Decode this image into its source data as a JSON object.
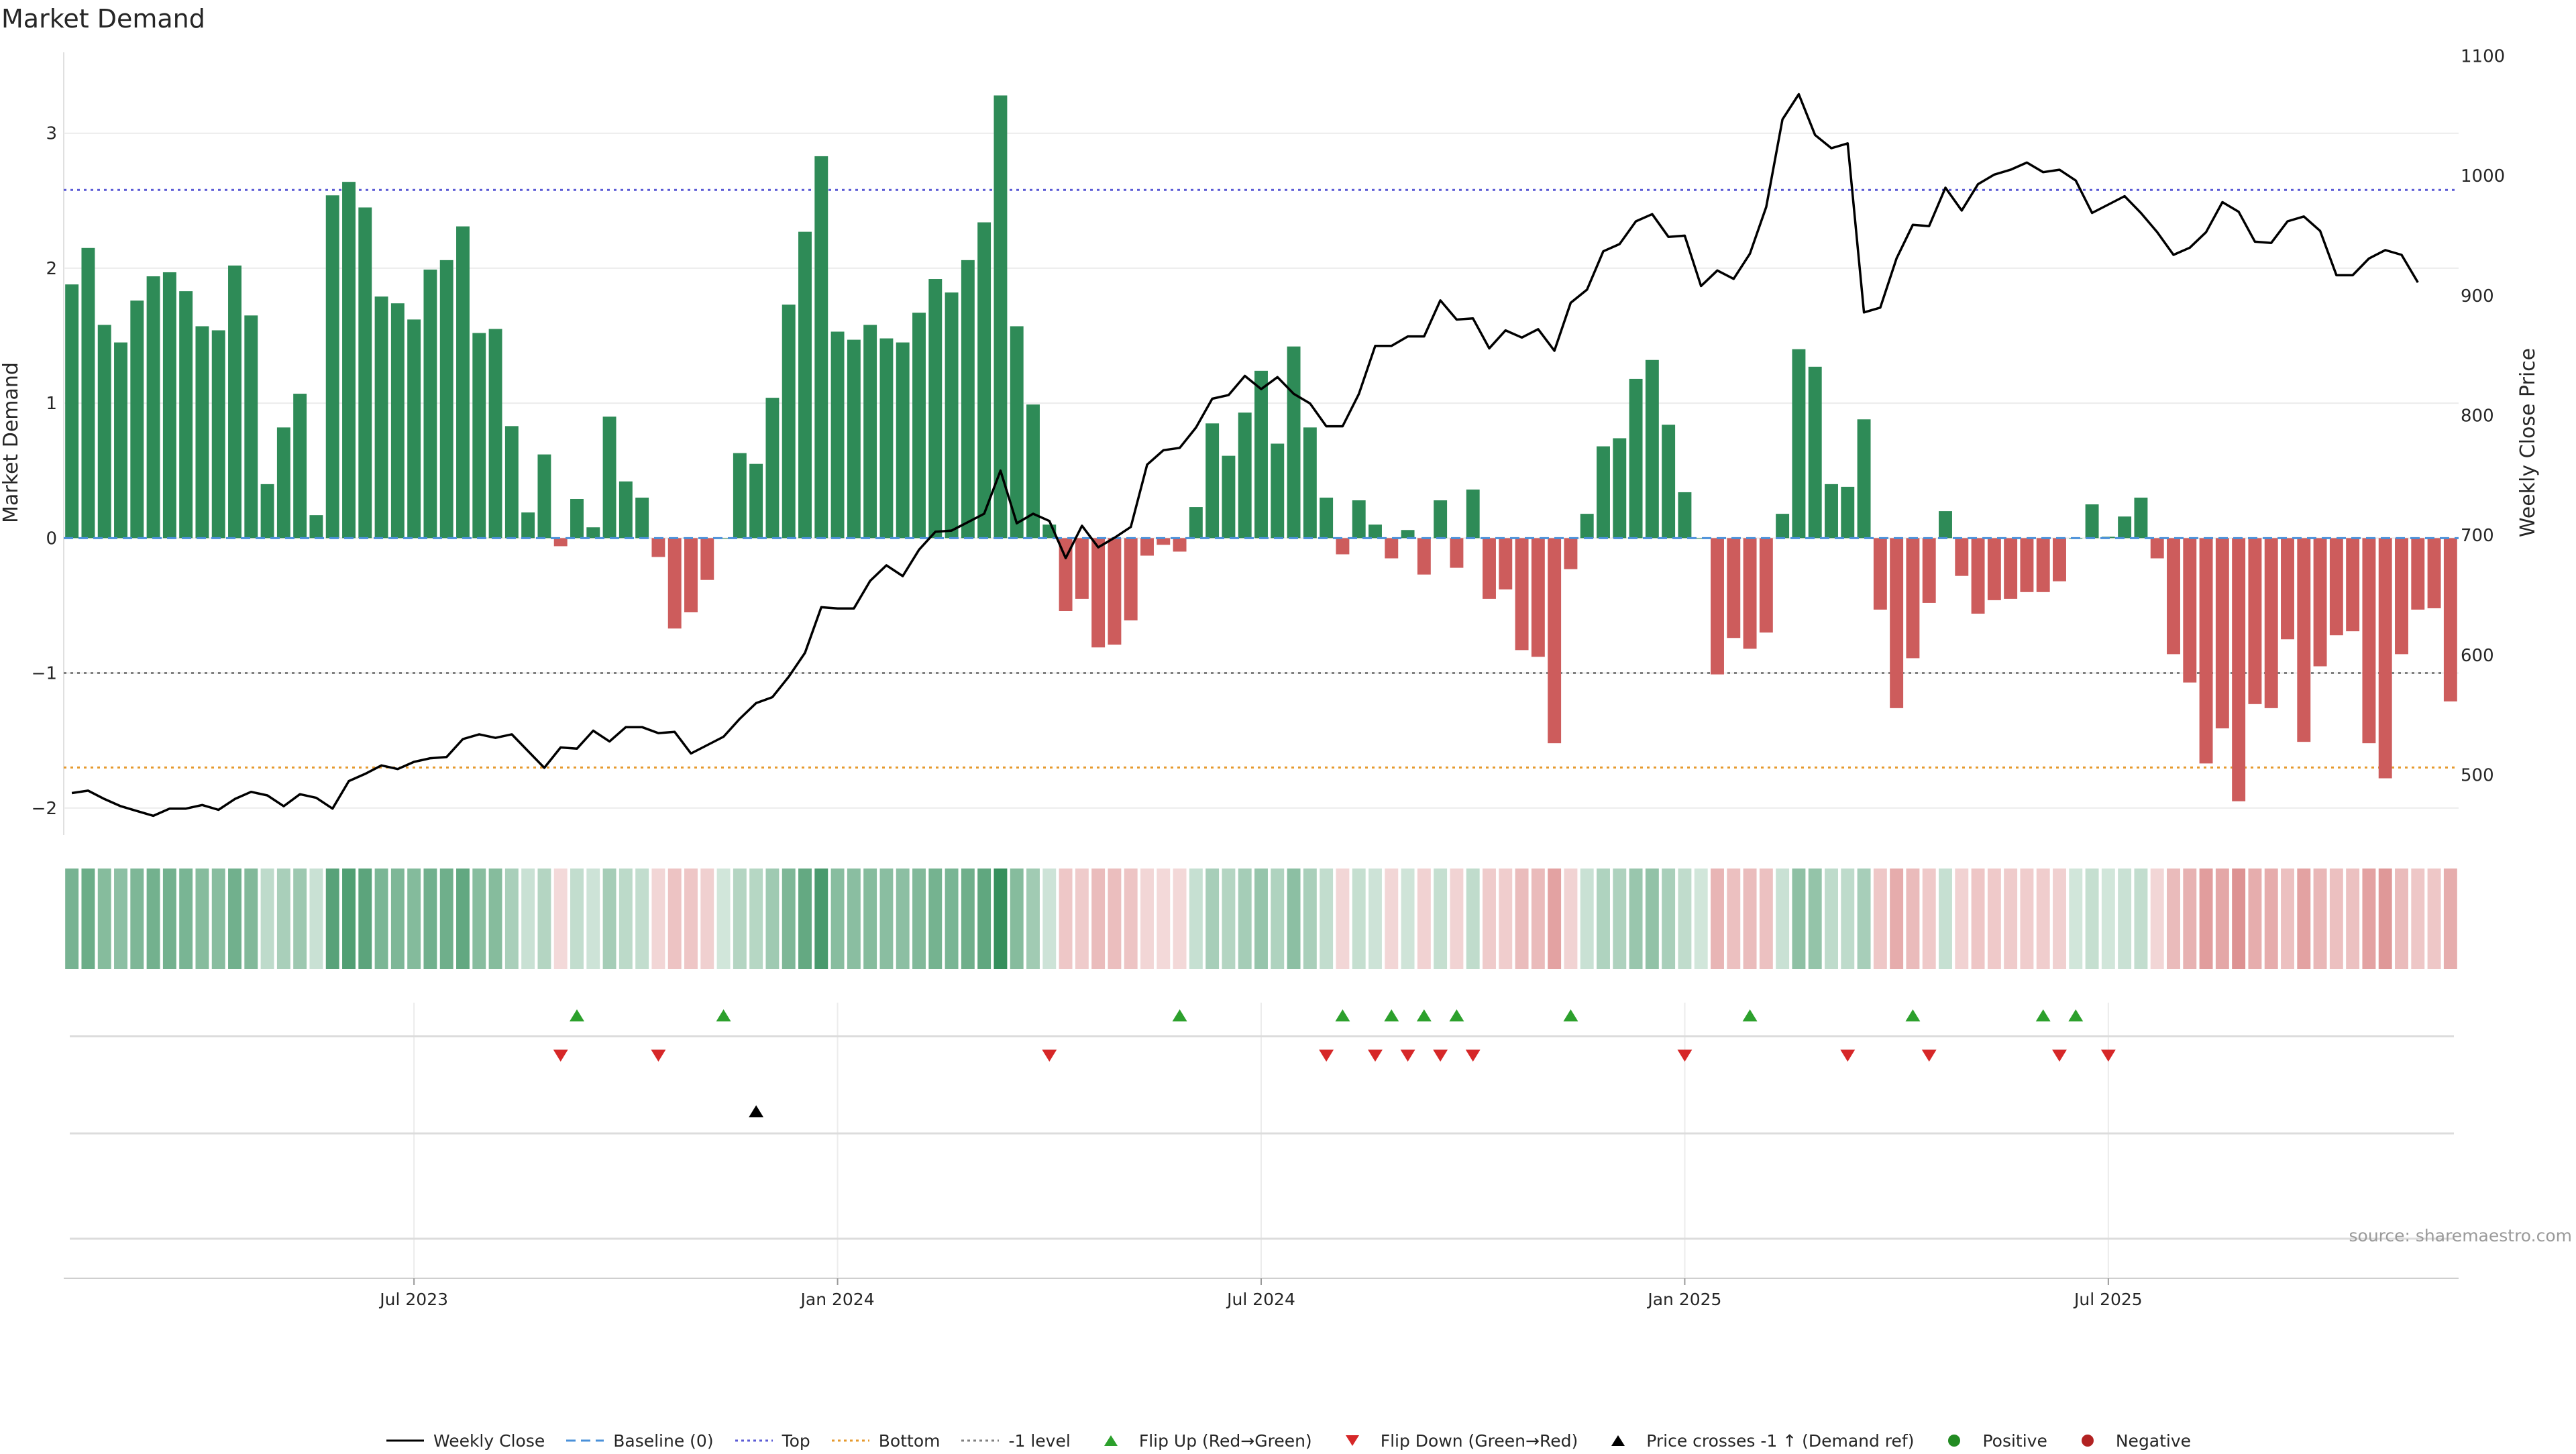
{
  "chart_data": {
    "type": "bar",
    "title": "Market Demand",
    "source": "source: sharemaestro.com",
    "ylabel_left": "Market Demand",
    "ylabel_right": "Weekly Close Price",
    "y_left_ticks": [
      "3",
      "2",
      "1",
      "0",
      "−1",
      "−2"
    ],
    "y_right_ticks": [
      "1100",
      "1000",
      "900",
      "800",
      "700",
      "600",
      "500"
    ],
    "y_left_range": [
      -2.2,
      3.6
    ],
    "y_right_range": [
      450,
      1103
    ],
    "x_ticks": [
      "Jul 2023",
      "Jan 2024",
      "Jul 2024",
      "Jan 2025",
      "Jul 2025"
    ],
    "x_tick_weeks": [
      21,
      47,
      73,
      99,
      125
    ],
    "reference_lines": [
      {
        "name": "Top",
        "value": 2.58,
        "color": "#5b5bd6"
      },
      {
        "name": "-1 level",
        "value": -1.0,
        "color": "#808080"
      },
      {
        "name": "Bottom",
        "value": -1.7,
        "color": "#e69a2e"
      }
    ],
    "colors": {
      "positive": "#2e8b57",
      "negative": "#cd5c5c",
      "price": "#000000",
      "baseline": "#4a90d9",
      "flip_up": "#2ca02c",
      "flip_down": "#d62728"
    },
    "demand": [
      1.88,
      2.15,
      1.58,
      1.45,
      1.76,
      1.94,
      1.97,
      1.83,
      1.57,
      1.54,
      2.02,
      1.65,
      0.4,
      0.82,
      1.07,
      0.17,
      2.54,
      2.64,
      2.45,
      1.79,
      1.74,
      1.62,
      1.99,
      2.06,
      2.31,
      1.52,
      1.55,
      0.83,
      0.19,
      0.62,
      -0.06,
      0.29,
      0.08,
      0.9,
      0.42,
      0.3,
      -0.14,
      -0.67,
      -0.55,
      -0.31,
      0.0,
      0.63,
      0.55,
      1.04,
      1.73,
      2.27,
      2.83,
      1.53,
      1.47,
      1.58,
      1.48,
      1.45,
      1.67,
      1.92,
      1.82,
      2.06,
      2.34,
      3.28,
      1.57,
      0.99,
      0.1,
      -0.54,
      -0.45,
      -0.81,
      -0.79,
      -0.61,
      -0.13,
      -0.05,
      -0.1,
      0.23,
      0.85,
      0.61,
      0.93,
      1.24,
      0.7,
      1.42,
      0.82,
      0.3,
      -0.12,
      0.28,
      0.1,
      -0.15,
      0.06,
      -0.27,
      0.28,
      -0.22,
      0.36,
      -0.45,
      -0.38,
      -0.83,
      -0.88,
      -1.52,
      -0.23,
      0.18,
      0.68,
      0.74,
      1.18,
      1.32,
      0.84,
      0.34,
      0.0,
      -1.01,
      -0.74,
      -0.82,
      -0.7,
      0.18,
      1.4,
      1.27,
      0.4,
      0.38,
      0.88,
      -0.53,
      -1.26,
      -0.89,
      -0.48,
      0.2,
      -0.28,
      -0.56,
      -0.46,
      -0.45,
      -0.4,
      -0.4,
      -0.32,
      0.0,
      0.25,
      0.01,
      0.16,
      0.3,
      -0.15,
      -0.86,
      -1.07,
      -1.67,
      -1.41,
      -1.95,
      -1.23,
      -1.26,
      -0.75,
      -1.51,
      -0.95,
      -0.72,
      -0.69,
      -1.52,
      -1.78,
      -0.86,
      -0.53,
      -0.52,
      -1.21
    ],
    "price": [
      485,
      487,
      480,
      474,
      470,
      466,
      472,
      472,
      475,
      471,
      480,
      486,
      483,
      474,
      484,
      481,
      472,
      495,
      501,
      508,
      505,
      511,
      514,
      515,
      530,
      534,
      531,
      534,
      520,
      506,
      523,
      522,
      537,
      528,
      540,
      540,
      535,
      536,
      518,
      525,
      532,
      547,
      560,
      565,
      582,
      602,
      640,
      639,
      639,
      662,
      675,
      666,
      688,
      703,
      704,
      711,
      718,
      754,
      710,
      718,
      712,
      681,
      708,
      690,
      698,
      707,
      759,
      771,
      773,
      790,
      814,
      817,
      833,
      822,
      832,
      818,
      810,
      791,
      791,
      818,
      858,
      858,
      866,
      866,
      896,
      880,
      881,
      856,
      871,
      865,
      872,
      854,
      894,
      905,
      937,
      943,
      962,
      968,
      949,
      950,
      908,
      921,
      914,
      935,
      974,
      1047,
      1068,
      1034,
      1023,
      1027,
      886,
      890,
      931,
      959,
      958,
      990,
      971,
      993,
      1001,
      1005,
      1011,
      1003,
      1005,
      996,
      969,
      976,
      983,
      969,
      953,
      934,
      940,
      953,
      978,
      970,
      945,
      944,
      962,
      966,
      954,
      917,
      917,
      931,
      938,
      934,
      911
    ],
    "flip_up_weeks": [
      31,
      40,
      68,
      78,
      81,
      83,
      85,
      92,
      103,
      113,
      121,
      123
    ],
    "flip_down_weeks": [
      30,
      36,
      60,
      77,
      80,
      82,
      84,
      86,
      99,
      109,
      114,
      122,
      125
    ],
    "price_cross_weeks": [
      42
    ],
    "legend": [
      "Weekly Close",
      "Baseline (0)",
      "Top",
      "Bottom",
      "-1 level",
      "Flip Up (Red→Green)",
      "Flip Down (Green→Red)",
      "Price crosses -1 ↑ (Demand ref)",
      "Positive",
      "Negative"
    ]
  }
}
